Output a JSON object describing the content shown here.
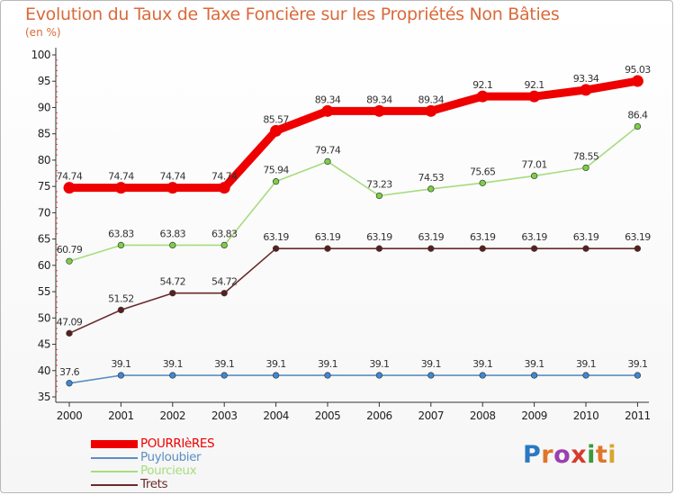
{
  "title": "Evolution du Taux de Taxe Foncière sur les Propriétés Non Bâties",
  "subtitle": "(en %)",
  "logo": {
    "text": "Proxiti",
    "letter_colors": [
      "#2b78c2",
      "#e0752a",
      "#9a3fb0",
      "#d63b2f",
      "#3a9a3a",
      "#e0752a",
      "#d6a82c"
    ]
  },
  "chart_data": {
    "type": "line",
    "title": "Evolution du Taux de Taxe Foncière sur les Propriétés Non Bâties",
    "ylabel": "(en %)",
    "xlabel": "",
    "categories": [
      "2000",
      "2001",
      "2002",
      "2003",
      "2004",
      "2005",
      "2006",
      "2007",
      "2008",
      "2009",
      "2010",
      "2011"
    ],
    "ylim": [
      35,
      100
    ],
    "yticks": [
      35,
      40,
      45,
      50,
      55,
      60,
      65,
      70,
      75,
      80,
      85,
      90,
      95,
      100
    ],
    "grid": false,
    "legend_position": "bottom-left",
    "series": [
      {
        "name": "POURRIèRES",
        "color": "#ee0000",
        "thick": true,
        "values": [
          74.74,
          74.74,
          74.74,
          74.74,
          85.57,
          89.34,
          89.34,
          89.34,
          92.1,
          92.1,
          93.34,
          95.03
        ],
        "labels": [
          "74.74",
          "74.74",
          "74.74",
          "74.74",
          "85.57",
          "89.34",
          "89.34",
          "89.34",
          "92.1",
          "92.1",
          "93.34",
          "95.03"
        ]
      },
      {
        "name": "Puyloubier",
        "color": "#5b8ec2",
        "marker": "#3d88d6",
        "values": [
          37.6,
          39.1,
          39.1,
          39.1,
          39.1,
          39.1,
          39.1,
          39.1,
          39.1,
          39.1,
          39.1,
          39.1
        ],
        "labels": [
          "37.6",
          "39.1",
          "39.1",
          "39.1",
          "39.1",
          "39.1",
          "39.1",
          "39.1",
          "39.1",
          "39.1",
          "39.1",
          "39.1"
        ]
      },
      {
        "name": "Pourcieux",
        "color": "#a6dc7e",
        "marker": "#7ccf46",
        "values": [
          60.79,
          63.83,
          63.83,
          63.83,
          75.94,
          79.74,
          73.23,
          74.53,
          75.65,
          77.01,
          78.55,
          86.4
        ],
        "labels": [
          "60.79",
          "63.83",
          "63.83",
          "63.83",
          "75.94",
          "79.74",
          "73.23",
          "74.53",
          "75.65",
          "77.01",
          "78.55",
          "86.4"
        ]
      },
      {
        "name": "Trets",
        "color": "#6a2a2a",
        "marker": "#5a1e1e",
        "values": [
          47.09,
          51.52,
          54.72,
          54.72,
          63.19,
          63.19,
          63.19,
          63.19,
          63.19,
          63.19,
          63.19,
          63.19
        ],
        "labels": [
          "47.09",
          "51.52",
          "54.72",
          "54.72",
          "63.19",
          "63.19",
          "63.19",
          "63.19",
          "63.19",
          "63.19",
          "63.19",
          "63.19"
        ]
      }
    ]
  }
}
